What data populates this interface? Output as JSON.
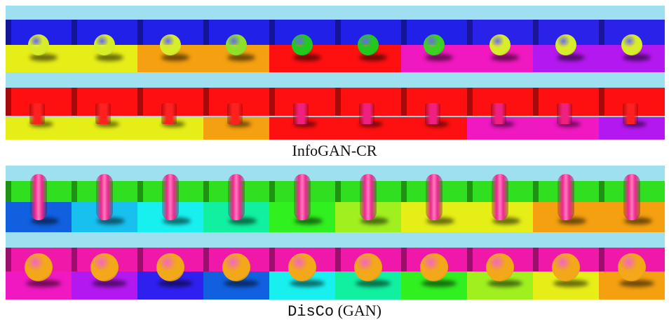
{
  "captions": {
    "infogan": "InfoGAN-CR",
    "disco_mono": "DisCo",
    "disco_rest": " (GAN)"
  },
  "palette": {
    "sky": "#9fe0f0"
  },
  "rows": [
    {
      "object": "sphere",
      "objectColors": [
        "#d6ee2a",
        "#d6ee2a",
        "#d6ee2a",
        "#8ee028",
        "#22c81e",
        "#22c81e",
        "#3cd020",
        "#d6ee2a",
        "#d6ee2a",
        "#d6ee2a"
      ],
      "wallColors": [
        "#2020e8",
        "#2020e8",
        "#2020e8",
        "#2020e8",
        "#2020e8",
        "#2020e8",
        "#2020e8",
        "#2a22e8",
        "#2a22e8",
        "#2a22e8"
      ],
      "floorColors": [
        "#e6ee18",
        "#e6ee18",
        "#f4a010",
        "#f4a010",
        "#ff1010",
        "#ff1010",
        "#f018c0",
        "#f018c0",
        "#b418f0",
        "#b418f0"
      ]
    },
    {
      "object": "cylinder",
      "objectColors": [
        "#ff2020",
        "#ff2020",
        "#ff2020",
        "#ff2020",
        "#f02080",
        "#f02080",
        "#f02080",
        "#f02080",
        "#f02080",
        "#ff2020"
      ],
      "wallColors": [
        "#ff1010",
        "#ff1010",
        "#ff1010",
        "#ff1010",
        "#ff1010",
        "#ff1010",
        "#ff1010",
        "#ff1010",
        "#ff1010",
        "#ff1010"
      ],
      "floorColors": [
        "#e6ee18",
        "#e6ee18",
        "#e6ee18",
        "#f4a010",
        "#ff1010",
        "#ff1010",
        "#ff1010",
        "#f018c0",
        "#f018c0",
        "#b418f0"
      ]
    },
    {
      "object": "capsule",
      "objectColors": [
        "#f02890",
        "#f02890",
        "#f02890",
        "#f02890",
        "#f02890",
        "#f02890",
        "#f02890",
        "#f02890",
        "#f02890",
        "#f02890"
      ],
      "wallColors": [
        "#30e020",
        "#30e020",
        "#30e020",
        "#30e020",
        "#30e020",
        "#30e020",
        "#30e020",
        "#30e020",
        "#30e020",
        "#30e020"
      ],
      "floorColors": [
        "#1060e0",
        "#18c0f0",
        "#18f0f0",
        "#10f0a0",
        "#30f020",
        "#a0f020",
        "#e6ee18",
        "#e6ee18",
        "#f4a010",
        "#f4a010"
      ]
    },
    {
      "object": "sphere",
      "objectColors": [
        "#f2a818",
        "#f2a818",
        "#f2a818",
        "#f2a818",
        "#f2a818",
        "#f2a818",
        "#f2a818",
        "#f2a818",
        "#f2a818",
        "#f2a818"
      ],
      "wallColors": [
        "#f018a8",
        "#f018a8",
        "#f018a8",
        "#f018a8",
        "#f018a8",
        "#f018a8",
        "#f018a8",
        "#f018a8",
        "#f018a8",
        "#f018a8"
      ],
      "floorColors": [
        "#f018c0",
        "#b418f0",
        "#3020f0",
        "#1060e0",
        "#18f0f0",
        "#10f0a0",
        "#30f020",
        "#a0f020",
        "#e6ee18",
        "#f4a010"
      ]
    }
  ]
}
